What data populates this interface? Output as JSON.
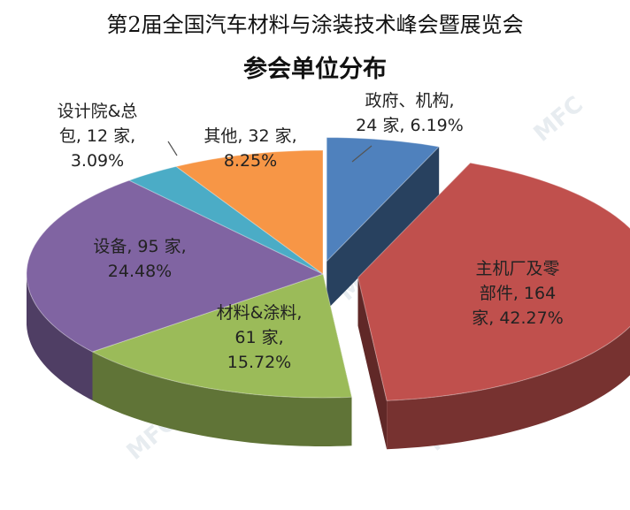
{
  "colors": {
    "zhengfu": "#4F81BD",
    "zhuji": "#C0504D",
    "cailiao": "#9BBB59",
    "shebei": "#8064A2",
    "sheji": "#4BACC6",
    "qita": "#F79646"
  },
  "watermark": "MFC",
  "chart_data": {
    "type": "pie",
    "title": "第2届全国汽车材料与涂装技术峰会暨展览会",
    "subtitle": "参会单位分布",
    "unit": "家",
    "slices": [
      {
        "name": "政府、机构",
        "value": 24,
        "percent": "6.19%",
        "label_lines": [
          "政府、机构,",
          "24 家, 6.19%"
        ],
        "color_key": "zhengfu"
      },
      {
        "name": "主机厂及零部件",
        "value": 164,
        "percent": "42.27%",
        "label_lines": [
          "主机厂及零",
          "部件, 164",
          "家, 42.27%"
        ],
        "color_key": "zhuji"
      },
      {
        "name": "材料&涂料",
        "value": 61,
        "percent": "15.72%",
        "label_lines": [
          "材料&涂料,",
          "61 家,",
          "15.72%"
        ],
        "color_key": "cailiao"
      },
      {
        "name": "设备",
        "value": 95,
        "percent": "24.48%",
        "label_lines": [
          "设备, 95 家,",
          "24.48%"
        ],
        "color_key": "shebei"
      },
      {
        "name": "设计院&总包",
        "value": 12,
        "percent": "3.09%",
        "label_lines": [
          "设计院&总",
          "包, 12 家,",
          "3.09%"
        ],
        "color_key": "sheji"
      },
      {
        "name": "其他",
        "value": 32,
        "percent": "8.25%",
        "label_lines": [
          "其他, 32 家,",
          "8.25%"
        ],
        "color_key": "qita"
      }
    ]
  }
}
